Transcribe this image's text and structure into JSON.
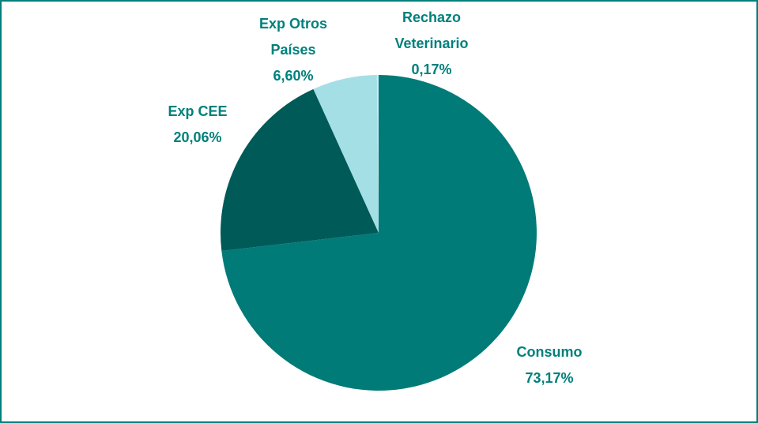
{
  "chart_data": {
    "type": "pie",
    "categories": [
      "Consumo",
      "Exp CEE",
      "Exp Otros Países",
      "Rechazo Veterinario"
    ],
    "values": [
      73.17,
      20.06,
      6.6,
      0.17
    ],
    "value_labels": [
      "73,17%",
      "20,06%",
      "6,60%",
      "0,17%"
    ],
    "colors": [
      "#007b78",
      "#005a58",
      "#a4dfe6",
      "#c9eef2"
    ],
    "start_angle": "top",
    "direction": "clockwise"
  }
}
